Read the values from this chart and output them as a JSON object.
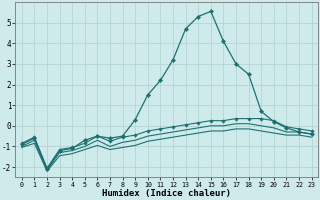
{
  "x": [
    0,
    1,
    2,
    3,
    4,
    5,
    6,
    7,
    8,
    9,
    10,
    11,
    12,
    13,
    14,
    15,
    16,
    17,
    18,
    19,
    20,
    21,
    22,
    23
  ],
  "line1": [
    -0.9,
    -0.6,
    -2.1,
    -1.2,
    -1.1,
    -0.7,
    -0.5,
    -0.6,
    -0.5,
    0.3,
    1.5,
    2.2,
    3.2,
    4.7,
    5.3,
    5.55,
    4.1,
    3.0,
    2.5,
    0.7,
    0.2,
    -0.1,
    -0.3,
    -0.4
  ],
  "line2": [
    -0.85,
    -0.55,
    -2.05,
    -1.15,
    -1.05,
    -0.85,
    -0.5,
    -0.75,
    -0.55,
    -0.45,
    -0.25,
    -0.15,
    -0.05,
    0.05,
    0.15,
    0.25,
    0.25,
    0.35,
    0.35,
    0.35,
    0.25,
    -0.05,
    -0.15,
    -0.25
  ],
  "line3": [
    -1.0,
    -0.7,
    -2.15,
    -1.3,
    -1.2,
    -1.0,
    -0.7,
    -1.0,
    -0.8,
    -0.7,
    -0.5,
    -0.4,
    -0.3,
    -0.2,
    -0.1,
    0.0,
    0.0,
    0.1,
    0.1,
    0.0,
    -0.1,
    -0.3,
    -0.3,
    -0.4
  ],
  "line4": [
    -1.05,
    -0.85,
    -2.2,
    -1.45,
    -1.35,
    -1.15,
    -0.95,
    -1.15,
    -1.05,
    -0.95,
    -0.75,
    -0.65,
    -0.55,
    -0.45,
    -0.35,
    -0.25,
    -0.25,
    -0.15,
    -0.15,
    -0.25,
    -0.35,
    -0.45,
    -0.45,
    -0.55
  ],
  "bg_color": "#ceeaea",
  "grid_color": "#afd0d0",
  "line_color": "#1e7070",
  "xlabel": "Humidex (Indice chaleur)",
  "ylim": [
    -2.5,
    6.0
  ],
  "xlim": [
    -0.5,
    23.5
  ],
  "yticks": [
    -2,
    -1,
    0,
    1,
    2,
    3,
    4,
    5
  ],
  "xticks": [
    0,
    1,
    2,
    3,
    4,
    5,
    6,
    7,
    8,
    9,
    10,
    11,
    12,
    13,
    14,
    15,
    16,
    17,
    18,
    19,
    20,
    21,
    22,
    23
  ]
}
